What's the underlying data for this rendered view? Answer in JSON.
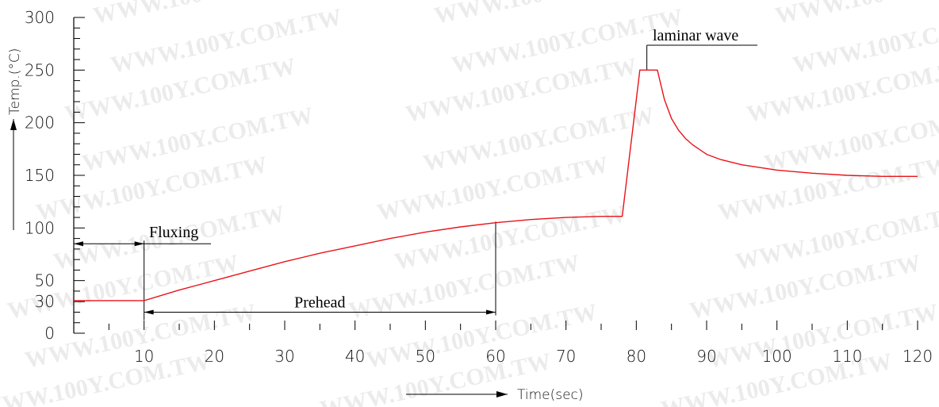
{
  "chart_data": {
    "type": "line",
    "title": "",
    "xlabel": "Time(sec)",
    "ylabel": "Temp.(°C)",
    "xlim": [
      0,
      120
    ],
    "ylim": [
      0,
      300
    ],
    "x_ticks": [
      10,
      20,
      30,
      40,
      50,
      60,
      70,
      80,
      90,
      100,
      110,
      120
    ],
    "x_minor_ticks": [
      5,
      15,
      25,
      35,
      45,
      55,
      65,
      75,
      85,
      95,
      105,
      115
    ],
    "y_ticks": [
      0,
      30,
      50,
      100,
      150,
      200,
      250,
      300
    ],
    "y_minor_ticks": [
      10,
      20,
      40,
      60,
      70,
      80,
      90,
      110,
      120,
      130,
      140,
      160,
      170,
      180,
      190,
      210,
      220,
      230,
      240,
      260,
      270,
      280,
      290
    ],
    "grid": false,
    "legend": "none",
    "color": "#e8141a",
    "series": [
      {
        "x": [
          0,
          10,
          15,
          20,
          25,
          30,
          35,
          40,
          45,
          50,
          55,
          60,
          65,
          70,
          75,
          78,
          80.5,
          81,
          82.5,
          83,
          84,
          85,
          86,
          87,
          88,
          90,
          92,
          95,
          100,
          105,
          110,
          115,
          120
        ],
        "y": [
          31,
          31,
          41,
          50,
          59,
          68,
          76,
          83,
          90,
          96,
          101,
          105,
          108,
          110,
          111,
          111,
          250,
          250,
          250,
          250,
          222,
          204,
          193,
          185,
          179,
          170,
          165,
          160,
          155,
          152,
          150,
          149,
          149
        ]
      }
    ],
    "annotations": [
      {
        "label": "Fluxing",
        "x_start": 0,
        "x_end": 10,
        "y": 85
      },
      {
        "label": "Prehead",
        "x_start": 10,
        "x_end": 60,
        "y": 20
      },
      {
        "label": "laminar wave",
        "x": 81.5,
        "y": 250
      }
    ]
  },
  "watermark": {
    "text": "WWW.100Y.COM.TW"
  }
}
